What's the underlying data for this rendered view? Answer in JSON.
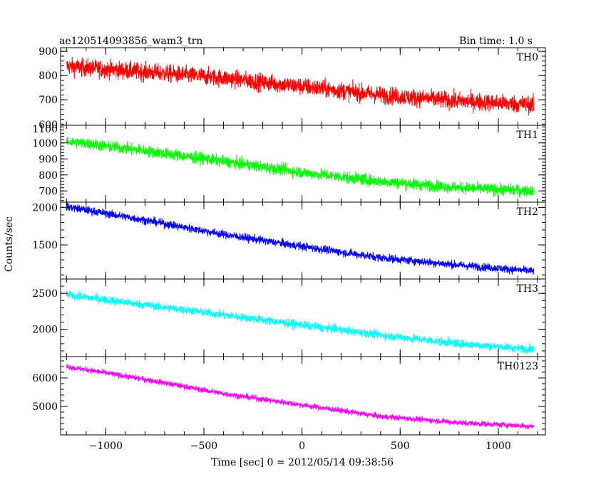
{
  "header": {
    "title": "ae120514093856_wam3_trn",
    "bin_time": "Bin time: 1.0 s"
  },
  "ylabel": "Counts/sec",
  "xlabel": "Time [sec] 0 = 2012/05/14 09:38:56",
  "chart_data": {
    "type": "line",
    "title": "ae120514093856_wam3_trn",
    "xlabel": "Time [sec] 0 = 2012/05/14 09:38:56",
    "ylabel": "Counts/sec",
    "xlim": [
      -1230,
      1240
    ],
    "x_ticks": [
      -1000,
      -500,
      0,
      500,
      1000
    ],
    "x_tick_labels": [
      "−1000",
      "−500",
      "0",
      "500",
      "1000"
    ],
    "x_range_data": [
      -1200,
      1180
    ],
    "grid": false,
    "series": [
      {
        "name": "TH0",
        "color": "#ff0000",
        "ylim": [
          595,
          915
        ],
        "y_ticks": [
          700,
          800,
          900
        ],
        "y_tick_labels": [
          "700",
          "800",
          "900"
        ],
        "bottom_partial_label": "600",
        "trend": [
          [
            -1200,
            838
          ],
          [
            -800,
            815
          ],
          [
            -400,
            790
          ],
          [
            0,
            755
          ],
          [
            400,
            720
          ],
          [
            800,
            695
          ],
          [
            1180,
            680
          ]
        ],
        "noise_amplitude": 40
      },
      {
        "name": "TH1",
        "color": "#00ff00",
        "ylim": [
          630,
          1110
        ],
        "y_ticks": [
          700,
          800,
          900,
          1000
        ],
        "y_tick_labels": [
          "700",
          "800",
          "900",
          "1000"
        ],
        "top_partial_label": "1100",
        "trend": [
          [
            -1200,
            1010
          ],
          [
            -800,
            950
          ],
          [
            -400,
            885
          ],
          [
            0,
            815
          ],
          [
            400,
            760
          ],
          [
            800,
            720
          ],
          [
            1180,
            700
          ]
        ],
        "noise_amplitude": 40
      },
      {
        "name": "TH2",
        "color": "#0000ff",
        "ylim": [
          1045,
          2070
        ],
        "y_ticks": [
          1500,
          2000
        ],
        "y_tick_labels": [
          "1500",
          "2000"
        ],
        "trend": [
          [
            -1200,
            2010
          ],
          [
            -800,
            1830
          ],
          [
            -400,
            1640
          ],
          [
            0,
            1480
          ],
          [
            400,
            1330
          ],
          [
            800,
            1230
          ],
          [
            1180,
            1150
          ]
        ],
        "noise_amplitude": 60
      },
      {
        "name": "TH3",
        "color": "#00ffff",
        "ylim": [
          1620,
          2700
        ],
        "y_ticks": [
          2000,
          2500
        ],
        "y_tick_labels": [
          "2000",
          "2500"
        ],
        "trend": [
          [
            -1200,
            2480
          ],
          [
            -800,
            2340
          ],
          [
            -400,
            2200
          ],
          [
            0,
            2060
          ],
          [
            400,
            1920
          ],
          [
            800,
            1800
          ],
          [
            1180,
            1720
          ]
        ],
        "noise_amplitude": 65
      },
      {
        "name": "TH0123",
        "color": "#ff00ff",
        "ylim": [
          4000,
          6750
        ],
        "y_ticks": [
          5000,
          6000
        ],
        "y_tick_labels": [
          "5000",
          "6000"
        ],
        "trend": [
          [
            -1200,
            6400
          ],
          [
            -800,
            5950
          ],
          [
            -400,
            5450
          ],
          [
            0,
            5050
          ],
          [
            400,
            4650
          ],
          [
            800,
            4430
          ],
          [
            1180,
            4300
          ]
        ],
        "noise_amplitude": 110
      }
    ]
  }
}
